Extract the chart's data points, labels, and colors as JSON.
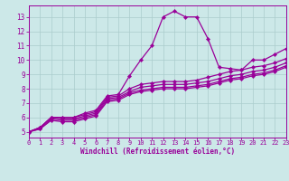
{
  "bg_color": "#cce8e8",
  "line_color": "#990099",
  "grid_color": "#aacccc",
  "xlabel": "Windchill (Refroidissement éolien,°C)",
  "xlabel_color": "#990099",
  "tick_color": "#990099",
  "xmin": 0,
  "xmax": 23,
  "ymin": 4.6,
  "ymax": 13.8,
  "yticks": [
    5,
    6,
    7,
    8,
    9,
    10,
    11,
    12,
    13
  ],
  "xticks": [
    0,
    1,
    2,
    3,
    4,
    5,
    6,
    7,
    8,
    9,
    10,
    11,
    12,
    13,
    14,
    15,
    16,
    17,
    18,
    19,
    20,
    21,
    22,
    23
  ],
  "series": [
    [
      5.0,
      5.3,
      6.0,
      6.0,
      6.0,
      6.3,
      6.5,
      7.5,
      7.6,
      8.9,
      10.0,
      11.0,
      13.0,
      13.4,
      13.0,
      13.0,
      11.5,
      9.5,
      9.4,
      9.3,
      10.0,
      10.0,
      10.4,
      10.8
    ],
    [
      5.0,
      5.3,
      6.0,
      6.0,
      6.0,
      6.2,
      6.4,
      7.4,
      7.5,
      8.0,
      8.3,
      8.4,
      8.5,
      8.5,
      8.5,
      8.6,
      8.8,
      9.0,
      9.2,
      9.3,
      9.5,
      9.6,
      9.8,
      10.1
    ],
    [
      5.0,
      5.3,
      6.0,
      5.9,
      5.9,
      6.1,
      6.3,
      7.3,
      7.4,
      7.8,
      8.1,
      8.2,
      8.3,
      8.3,
      8.3,
      8.4,
      8.5,
      8.7,
      8.9,
      9.0,
      9.2,
      9.3,
      9.5,
      9.8
    ],
    [
      5.0,
      5.2,
      5.9,
      5.8,
      5.8,
      6.0,
      6.2,
      7.2,
      7.3,
      7.7,
      7.9,
      8.0,
      8.1,
      8.1,
      8.1,
      8.2,
      8.3,
      8.5,
      8.7,
      8.8,
      9.0,
      9.1,
      9.3,
      9.6
    ],
    [
      5.0,
      5.2,
      5.8,
      5.7,
      5.7,
      5.9,
      6.1,
      7.1,
      7.2,
      7.6,
      7.8,
      7.9,
      8.0,
      8.0,
      8.0,
      8.1,
      8.2,
      8.4,
      8.6,
      8.7,
      8.9,
      9.0,
      9.2,
      9.5
    ]
  ],
  "figsize": [
    3.2,
    2.0
  ],
  "dpi": 100,
  "tick_fontsize": 5.0,
  "xlabel_fontsize": 5.5,
  "linewidth": 0.9,
  "markersize": 2.2
}
